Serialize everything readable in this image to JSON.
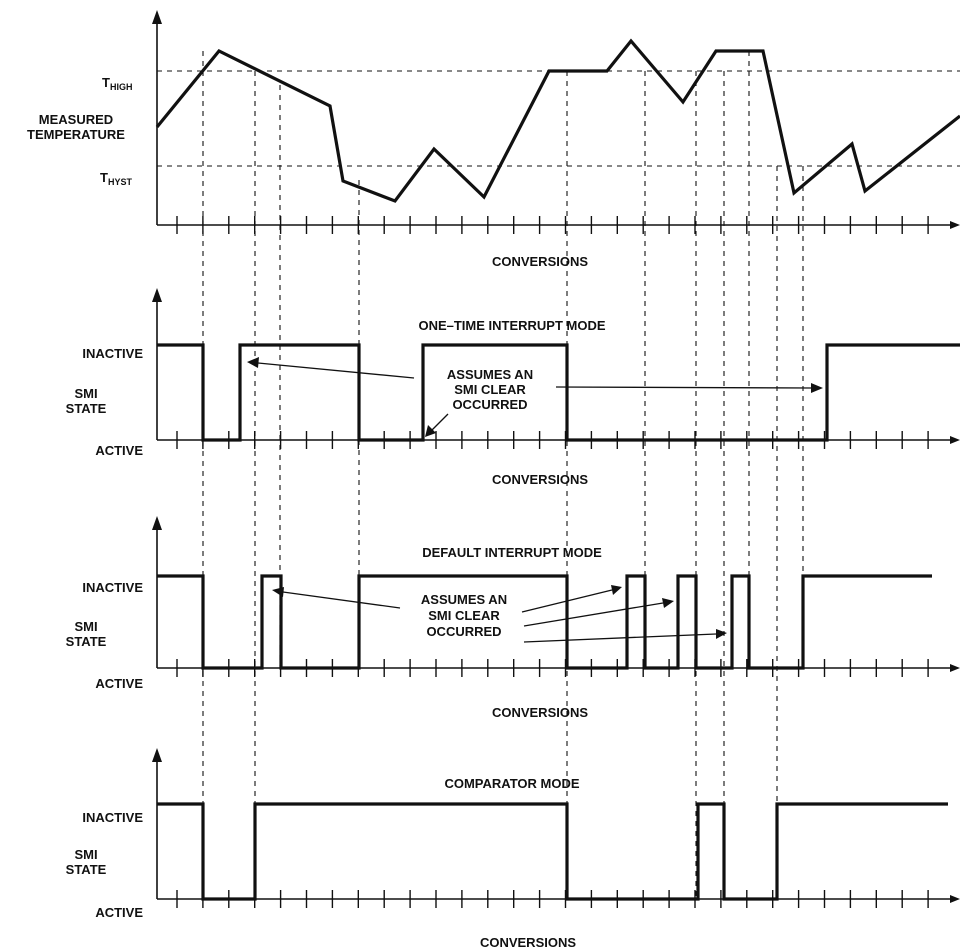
{
  "temperature_panel": {
    "ylabel": [
      "MEASURED",
      "TEMPERATURE"
    ],
    "t_high": {
      "main": "T",
      "sub": "HIGH"
    },
    "t_hyst": {
      "main": "T",
      "sub": "HYST"
    },
    "xlabel": "CONVERSIONS"
  },
  "panels": [
    {
      "key": "one_time",
      "title": "ONE–TIME INTERRUPT MODE",
      "inactive_label": "INACTIVE",
      "active_label": "ACTIVE",
      "ylabel": [
        "SMI",
        "STATE"
      ],
      "xlabel": "CONVERSIONS",
      "annotation": [
        "ASSUMES AN",
        "SMI CLEAR",
        "OCCURRED"
      ]
    },
    {
      "key": "default",
      "title": "DEFAULT INTERRUPT MODE",
      "inactive_label": "INACTIVE",
      "active_label": "ACTIVE",
      "ylabel": [
        "SMI",
        "STATE"
      ],
      "xlabel": "CONVERSIONS",
      "annotation": [
        "ASSUMES AN",
        "SMI CLEAR",
        "OCCURRED"
      ]
    },
    {
      "key": "comparator",
      "title": "COMPARATOR MODE",
      "inactive_label": "INACTIVE",
      "active_label": "ACTIVE",
      "ylabel": [
        "SMI",
        "STATE"
      ],
      "xlabel": "CONVERSIONS"
    }
  ],
  "colors": {
    "ink": "#111111",
    "background": "#ffffff"
  }
}
